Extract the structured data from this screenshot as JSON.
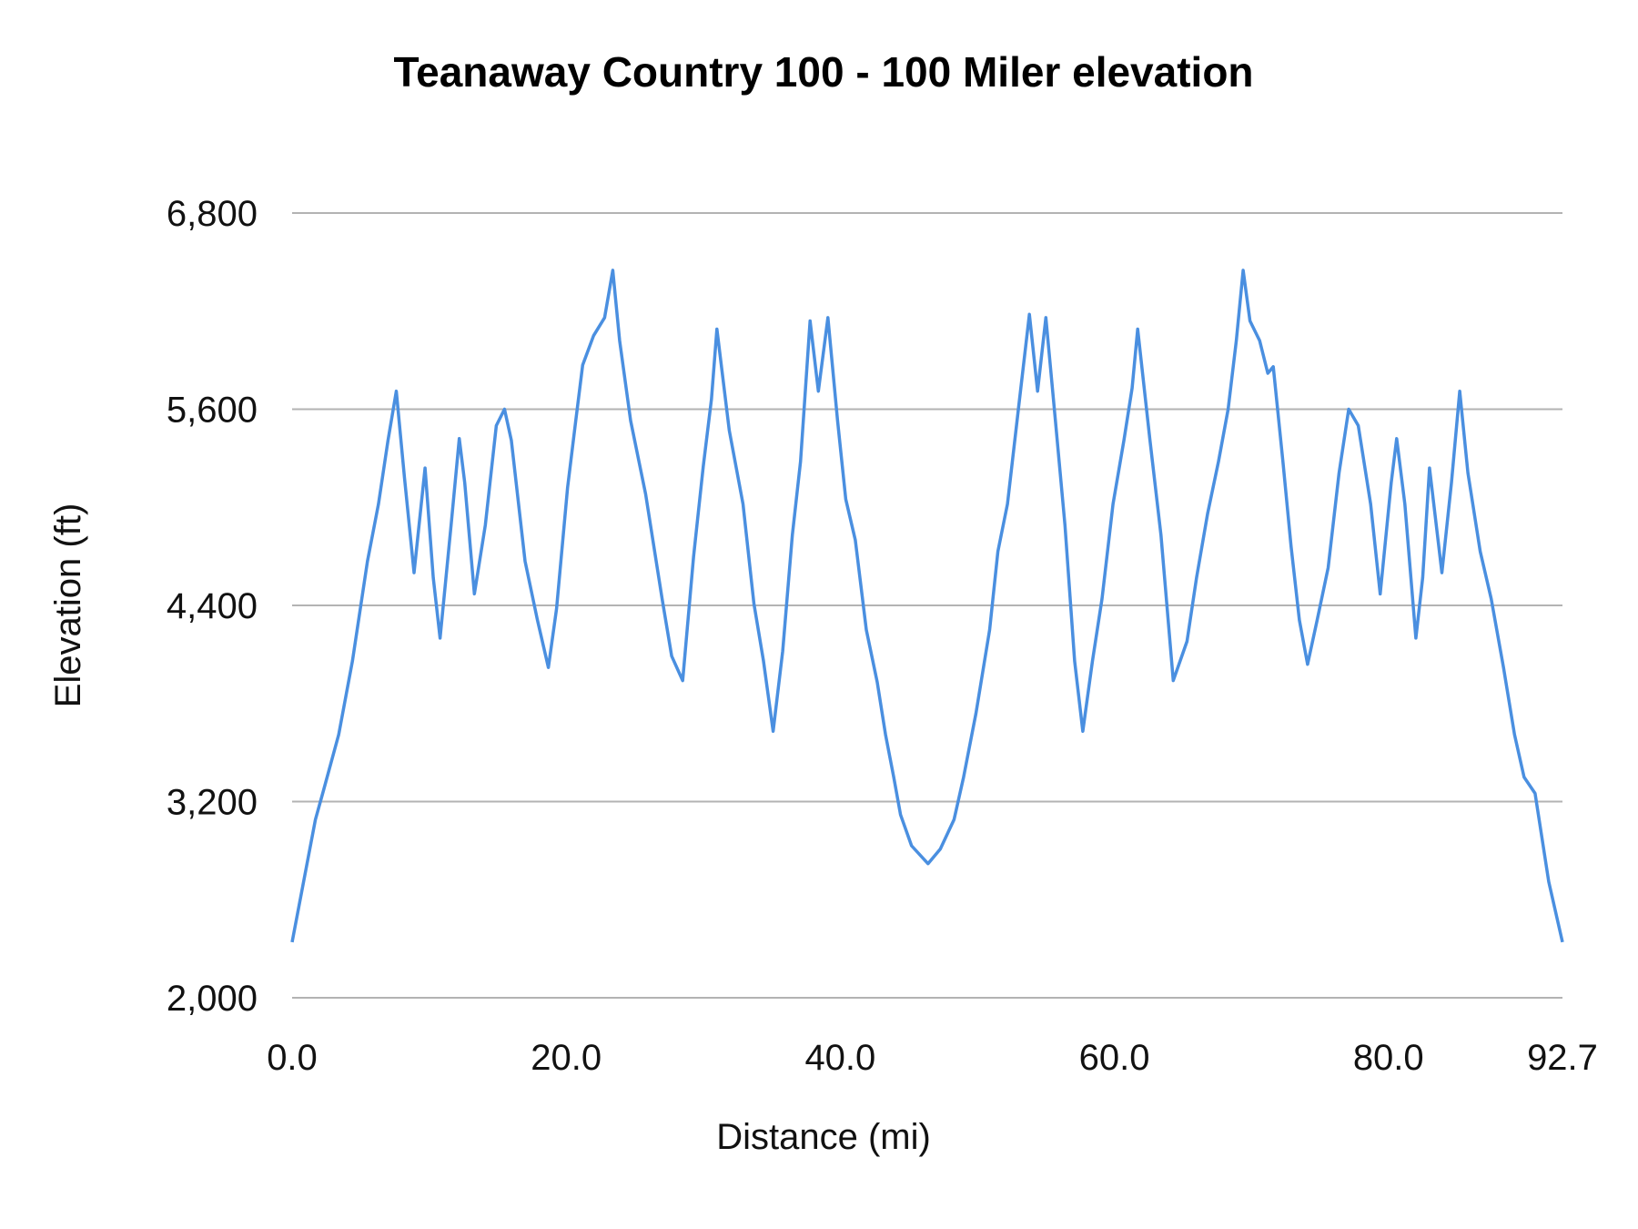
{
  "chart_data": {
    "type": "line",
    "title": "Teanaway Country 100 - 100 Miler elevation",
    "xlabel": "Distance (mi)",
    "ylabel": "Elevation (ft)",
    "xlim": [
      0,
      92.7
    ],
    "ylim": [
      2000,
      6800
    ],
    "x_ticks": [
      "0.0",
      "20.0",
      "40.0",
      "60.0",
      "80.0",
      "92.7"
    ],
    "x_tick_values": [
      0,
      20,
      40,
      60,
      80,
      92.7
    ],
    "y_ticks": [
      "2,000",
      "3,200",
      "4,400",
      "5,600",
      "6,800"
    ],
    "y_tick_values": [
      2000,
      3200,
      4400,
      5600,
      6800
    ],
    "grid": "horizontal",
    "legend": "none",
    "line_color": "#4a8fe0",
    "grid_color": "#b3b3b3",
    "series": [
      {
        "x": [
          0,
          1.7,
          2.3,
          3.4,
          4.4,
          5.5,
          6.3,
          7.0,
          7.6,
          8.2,
          8.9,
          9.7,
          10.3,
          10.8,
          11.6,
          12.2,
          12.6,
          13.3,
          14.1,
          14.9,
          15.5,
          16.0,
          17.0,
          17.9,
          18.7,
          19.3,
          20.1,
          20.7,
          21.2,
          22.0,
          22.8,
          23.4,
          23.9,
          24.7,
          25.8,
          27.0,
          27.7,
          28.5,
          29.3,
          30.0,
          30.6,
          31.0,
          31.9,
          32.9,
          33.7,
          34.4,
          35.1,
          35.8,
          36.5,
          37.1,
          37.8,
          38.4,
          39.1,
          39.8,
          40.4,
          41.1,
          41.9,
          42.7,
          43.3,
          43.9,
          44.4,
          45.2,
          46.4,
          47.3,
          48.3,
          49.0,
          49.9,
          50.9,
          51.5,
          52.2,
          53.0,
          53.8,
          54.4,
          55.0,
          55.7,
          56.4,
          57.1,
          57.7,
          58.4,
          59.1,
          59.9,
          60.7,
          61.3,
          61.7,
          62.6,
          63.4,
          64.3,
          65.3,
          66.0,
          66.8,
          67.6,
          68.3,
          68.9,
          69.4,
          69.9,
          70.6,
          71.2,
          71.6,
          72.3,
          72.9,
          73.5,
          74.1,
          74.8,
          75.6,
          76.4,
          77.1,
          77.8,
          78.7,
          79.4,
          80.2,
          80.6,
          81.2,
          82.0,
          82.5,
          83.0,
          83.9,
          84.6,
          85.2,
          85.8,
          86.7,
          87.5,
          88.4,
          89.2,
          89.9,
          90.7,
          91.7,
          92.7
        ],
        "y": [
          2340,
          3090,
          3270,
          3610,
          4060,
          4670,
          5020,
          5410,
          5710,
          5180,
          4600,
          5240,
          4570,
          4200,
          4890,
          5420,
          5150,
          4470,
          4890,
          5500,
          5600,
          5410,
          4670,
          4310,
          4020,
          4380,
          5120,
          5530,
          5870,
          6050,
          6160,
          6450,
          6020,
          5530,
          5080,
          4440,
          4090,
          3940,
          4700,
          5250,
          5660,
          6090,
          5470,
          5020,
          4410,
          4060,
          3630,
          4120,
          4830,
          5280,
          6140,
          5710,
          6160,
          5530,
          5050,
          4800,
          4250,
          3930,
          3610,
          3350,
          3120,
          2930,
          2820,
          2910,
          3090,
          3350,
          3740,
          4250,
          4730,
          5020,
          5600,
          6180,
          5710,
          6160,
          5530,
          4890,
          4060,
          3630,
          4060,
          4440,
          5020,
          5410,
          5730,
          6090,
          5410,
          4830,
          3940,
          4180,
          4570,
          4960,
          5280,
          5600,
          6020,
          6450,
          6140,
          6020,
          5820,
          5860,
          5280,
          4760,
          4310,
          4040,
          4310,
          4630,
          5210,
          5600,
          5500,
          5020,
          4470,
          5150,
          5420,
          5020,
          4200,
          4570,
          5240,
          4600,
          5150,
          5710,
          5210,
          4730,
          4440,
          4020,
          3610,
          3350,
          3250,
          2710,
          2340
        ]
      }
    ]
  }
}
